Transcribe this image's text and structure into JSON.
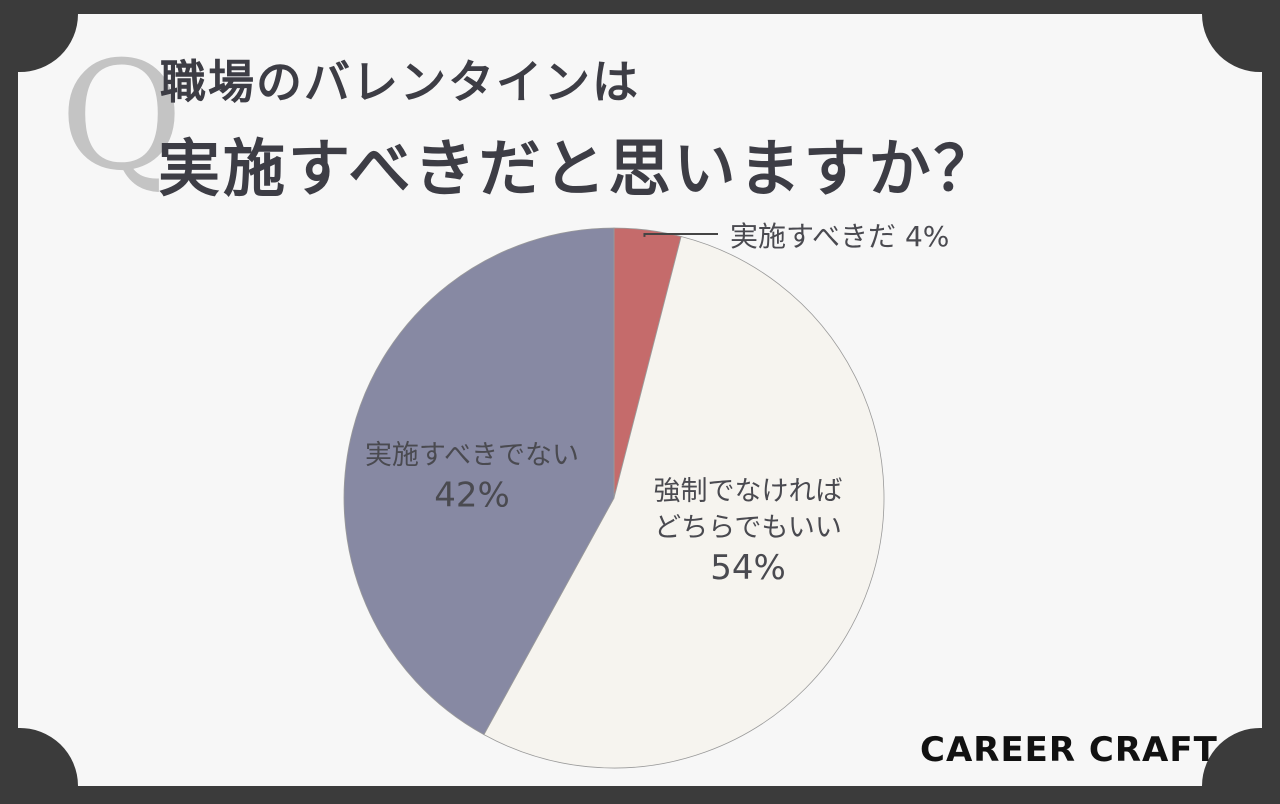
{
  "title": {
    "line1": "職場のバレンタインは",
    "line2": "実施すべきだと思いますか？",
    "q_mark": "Q"
  },
  "brand": "CAREER CRAFT",
  "colors": {
    "frame": "#3b3b3b",
    "card": "#f7f7f7",
    "title_text": "#3d3d45",
    "q_mark": "#c4c4c4"
  },
  "chart_data": {
    "type": "pie",
    "start_angle_deg": 0,
    "direction": "clockwise",
    "slices": [
      {
        "label": "実施すべきだ",
        "label_lines": [
          "実施すべきだ"
        ],
        "pct_text": "4%",
        "value": 4,
        "color": "#c56b6b"
      },
      {
        "label": "強制でなければどちらでもいい",
        "label_lines": [
          "強制でなければ",
          "どちらでもいい"
        ],
        "pct_text": "54%",
        "value": 54,
        "color": "#f6f4ef"
      },
      {
        "label": "実施すべきでない",
        "label_lines": [
          "実施すべきでない"
        ],
        "pct_text": "42%",
        "value": 42,
        "color": "#8789a3"
      }
    ]
  }
}
